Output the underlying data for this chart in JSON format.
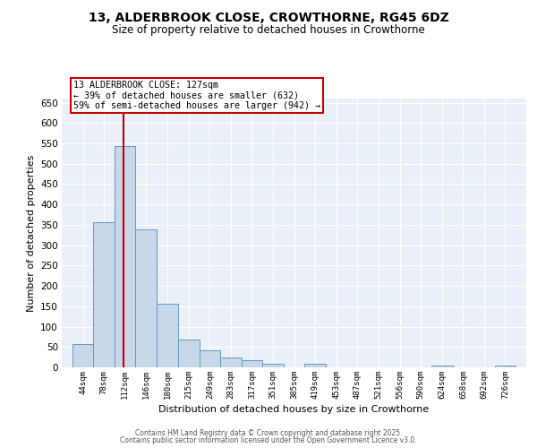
{
  "title_line1": "13, ALDERBROOK CLOSE, CROWTHORNE, RG45 6DZ",
  "title_line2": "Size of property relative to detached houses in Crowthorne",
  "xlabel": "Distribution of detached houses by size in Crowthorne",
  "ylabel": "Number of detached properties",
  "bin_labels": [
    "44sqm",
    "78sqm",
    "112sqm",
    "146sqm",
    "180sqm",
    "215sqm",
    "249sqm",
    "283sqm",
    "317sqm",
    "351sqm",
    "385sqm",
    "419sqm",
    "453sqm",
    "487sqm",
    "521sqm",
    "556sqm",
    "590sqm",
    "624sqm",
    "658sqm",
    "692sqm",
    "726sqm"
  ],
  "bin_edges": [
    44,
    78,
    112,
    146,
    180,
    215,
    249,
    283,
    317,
    351,
    385,
    419,
    453,
    487,
    521,
    556,
    590,
    624,
    658,
    692,
    726,
    760
  ],
  "bar_heights": [
    58,
    357,
    543,
    338,
    157,
    68,
    42,
    24,
    17,
    8,
    1,
    8,
    1,
    1,
    1,
    1,
    1,
    4,
    1,
    1,
    5
  ],
  "bar_color": "#c8d8eb",
  "bar_edge_color": "#6699bb",
  "red_line_x": 127,
  "red_line_color": "#cc0000",
  "ylim": [
    0,
    660
  ],
  "yticks": [
    0,
    50,
    100,
    150,
    200,
    250,
    300,
    350,
    400,
    450,
    500,
    550,
    600,
    650
  ],
  "annotation_title": "13 ALDERBROOK CLOSE: 127sqm",
  "annotation_line2": "← 39% of detached houses are smaller (632)",
  "annotation_line3": "59% of semi-detached houses are larger (942) →",
  "annotation_box_color": "#ffffff",
  "annotation_border_color": "#cc0000",
  "bg_color": "#eaf0f8",
  "footer_line1": "Contains HM Land Registry data © Crown copyright and database right 2025.",
  "footer_line2": "Contains public sector information licensed under the Open Government Licence v3.0.",
  "grid_color": "#ffffff",
  "title_fontsize": 10,
  "subtitle_fontsize": 8.5,
  "ylabel_fontsize": 8,
  "xlabel_fontsize": 8,
  "ytick_fontsize": 7.5,
  "xtick_fontsize": 6.5
}
